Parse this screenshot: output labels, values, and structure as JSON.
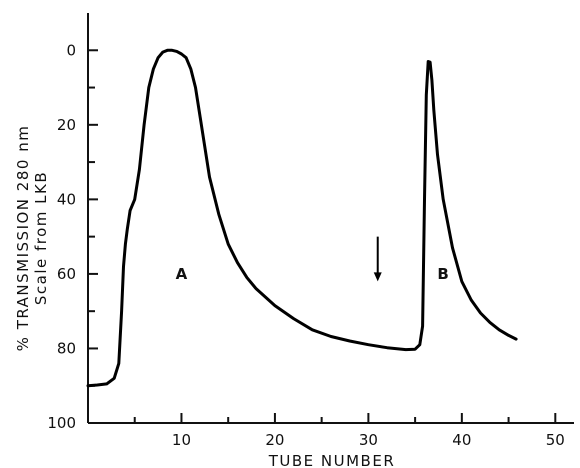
{
  "chart_data": {
    "type": "line",
    "xlabel": "TUBE NUMBER",
    "ylabel": "% TRANSMISSION 280 nm",
    "ylabel_sub": "Scale from LKB",
    "xlim": [
      0,
      52
    ],
    "ylim": [
      100,
      -10
    ],
    "y_inverted": true,
    "grid": false,
    "x_ticks": [
      10,
      20,
      30,
      40,
      50
    ],
    "y_ticks": [
      0,
      20,
      40,
      60,
      80,
      100
    ],
    "x_tick_labels": [
      "10",
      "20",
      "30",
      "40",
      "50"
    ],
    "y_tick_labels": [
      "0",
      "20",
      "40",
      "60",
      "80",
      "100"
    ],
    "annotations": [
      {
        "text": "A",
        "x": 10.0,
        "y": 60
      },
      {
        "text": "B",
        "x": 38.0,
        "y": 60
      }
    ],
    "arrow": {
      "x": 31.0,
      "y_from": 50,
      "y_to": 62
    },
    "series": [
      {
        "x": [
          0,
          1,
          2,
          2.8,
          3.3,
          3.6,
          3.8,
          4.0,
          4.2,
          4.5,
          5.0,
          5.5,
          6.0,
          6.5,
          7.0,
          7.5,
          8.0,
          8.5,
          9.0,
          9.5,
          10.0,
          10.5,
          11.0,
          11.5,
          12.0,
          13.0,
          14.0,
          15.0,
          16.0,
          17.0,
          18.0,
          20.0,
          22.0,
          24.0,
          26.0,
          28.0,
          30.0,
          32.0,
          34.0,
          35.0,
          35.5,
          35.8,
          36.0,
          36.2,
          36.4,
          36.6,
          36.8,
          37.0,
          37.4,
          38.0,
          39.0,
          40.0,
          41.0,
          42.0,
          43.0,
          44.0,
          45.0,
          45.8
        ],
        "y": [
          90,
          89.8,
          89.5,
          88,
          84,
          70,
          58,
          52,
          48,
          43,
          40,
          32,
          20,
          10,
          5,
          2,
          0.5,
          0,
          0,
          0.3,
          1,
          2,
          5,
          10,
          18,
          34,
          44,
          52,
          57,
          61,
          64,
          68.5,
          72,
          75,
          76.8,
          78,
          79,
          79.8,
          80.3,
          80.2,
          79,
          74,
          40,
          12,
          3,
          3.2,
          8,
          16,
          28,
          40,
          53,
          62,
          67,
          70.5,
          73,
          75,
          76.5,
          77.5
        ]
      }
    ]
  }
}
